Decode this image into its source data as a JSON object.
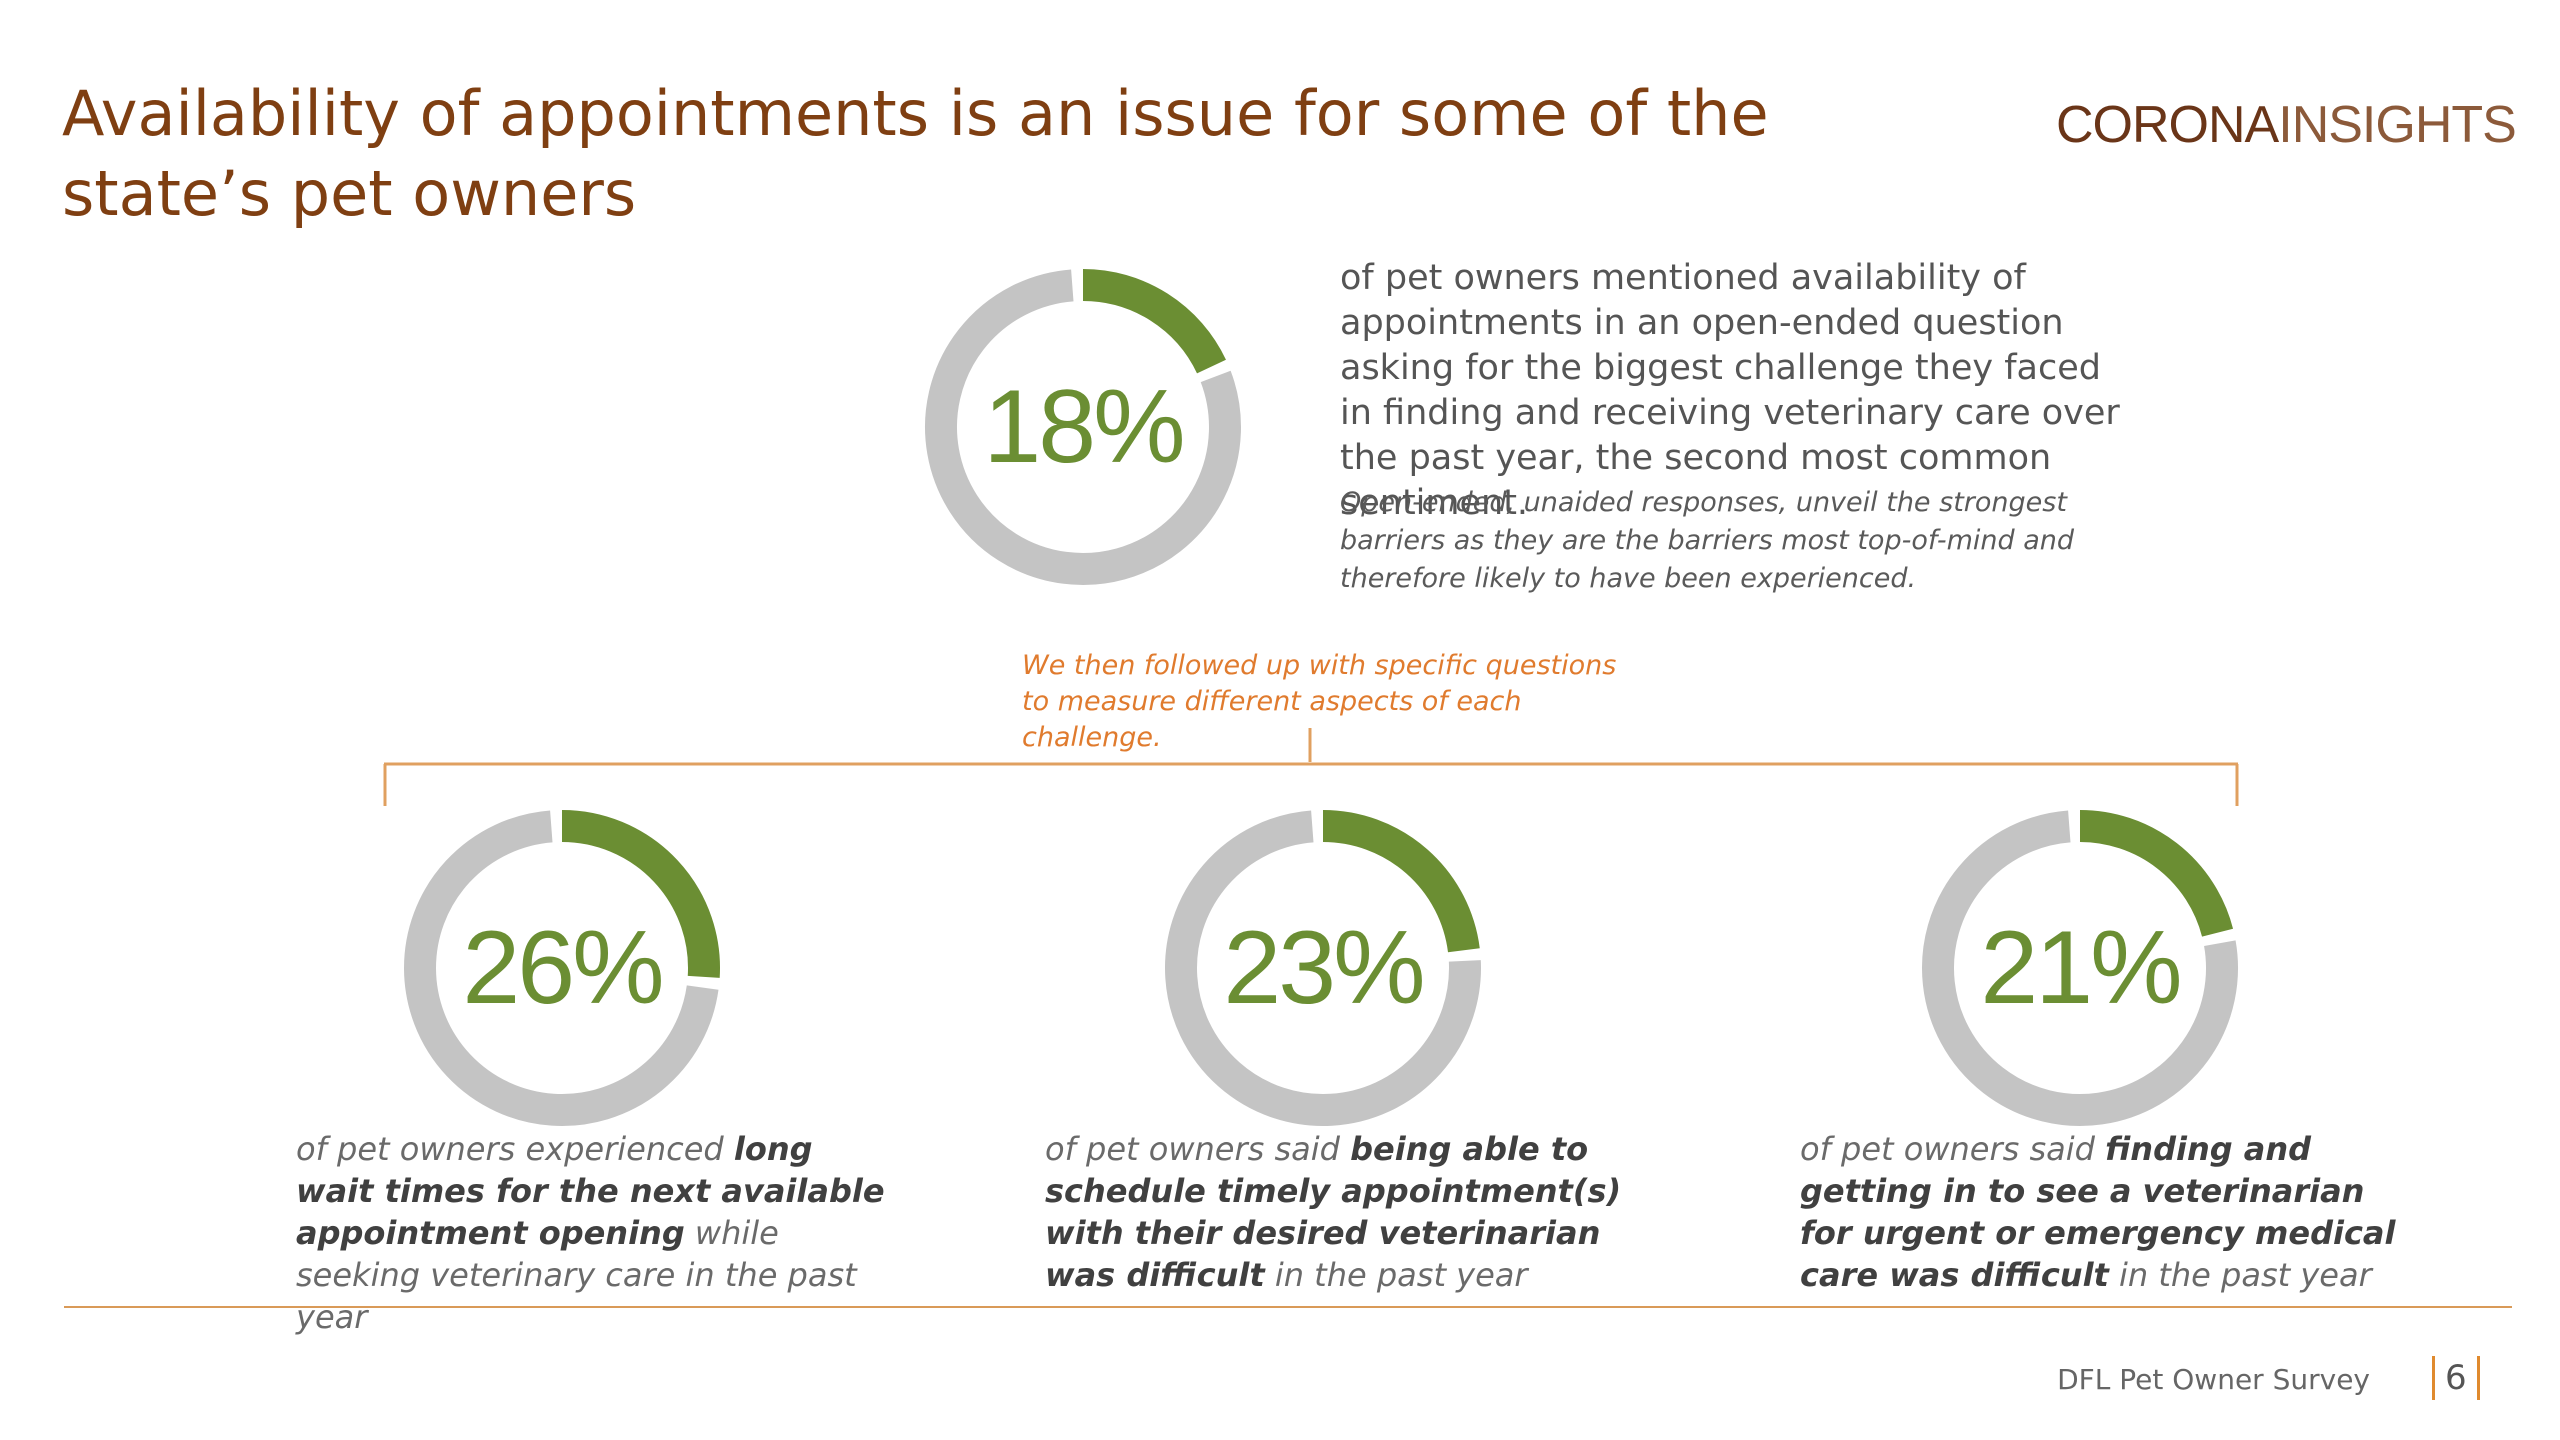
{
  "title": "Availability of appointments is an issue for some of the state’s pet owners",
  "logo": {
    "part1": "CORONA",
    "part2": "INSIGHTS"
  },
  "colors": {
    "accent": "#6b8e33",
    "remainder": "#c4c4c4",
    "title": "#7f3f12",
    "followup": "#e07b2e",
    "line": "#d99a58"
  },
  "main": {
    "text": "of pet owners mentioned availability of appointments in an open-ended question asking for the biggest challenge they faced in finding and receiving veterinary care over the past year, the second most common sentiment.",
    "note": "Open-ended, unaided responses, unveil the strongest barriers as they are the barriers most top-of-mind and therefore likely to have been experienced."
  },
  "followup": "We then followed up with specific questions to measure different aspects of each challenge.",
  "captions": [
    {
      "pre": "of pet owners experienced ",
      "bold": "long wait times for the next available appointment opening",
      "post": " while seeking veterinary care in the past year"
    },
    {
      "pre": "of pet owners said ",
      "bold": "being able to schedule timely appointment(s) with their desired veterinarian was difficult",
      "post": " in the past year"
    },
    {
      "pre": "of pet owners said ",
      "bold": "finding and getting in to see a veterinarian for urgent or emergency medical care was difficult",
      "post": " in the past year"
    }
  ],
  "chart_data": [
    {
      "type": "pie",
      "values": [
        18,
        82
      ],
      "label": "18%"
    },
    {
      "type": "pie",
      "values": [
        26,
        74
      ],
      "label": "26%"
    },
    {
      "type": "pie",
      "values": [
        23,
        77
      ],
      "label": "23%"
    },
    {
      "type": "pie",
      "values": [
        21,
        79
      ],
      "label": "21%"
    }
  ],
  "footer": {
    "survey": "DFL Pet Owner Survey",
    "page": "6"
  }
}
